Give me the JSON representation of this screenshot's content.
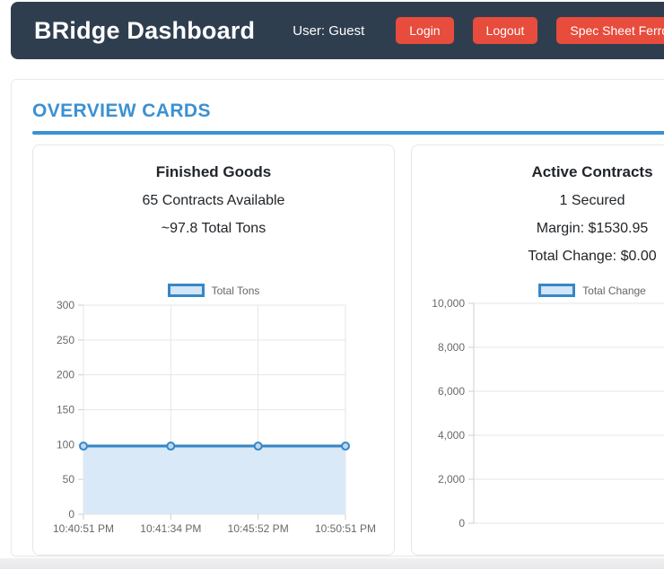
{
  "header": {
    "title": "BRidge Dashboard",
    "user_label": "User: Guest",
    "buttons": [
      "Login",
      "Logout",
      "Spec Sheet Ferrous"
    ]
  },
  "section": {
    "title": "OVERVIEW CARDS"
  },
  "cards": [
    {
      "title": "Finished Goods",
      "lines": [
        "65 Contracts Available",
        "~97.8 Total Tons"
      ]
    },
    {
      "title": "Active Contracts",
      "lines": [
        "1 Secured",
        "Margin: $1530.95",
        "Total Change: $0.00"
      ]
    }
  ],
  "chart_data": [
    {
      "type": "area",
      "title": "Finished Goods - Total Tons",
      "legend": "Total Tons",
      "categories": [
        "10:40:51 PM",
        "10:41:34 PM",
        "10:45:52 PM",
        "10:50:51 PM"
      ],
      "values": [
        97.8,
        97.8,
        97.8,
        97.8
      ],
      "ylim": [
        0,
        300
      ],
      "ytick_step": 50,
      "grid": true,
      "legend_position": "top"
    },
    {
      "type": "area",
      "title": "Active Contracts - Total Change",
      "legend": "Total Change",
      "categories": [],
      "values": [],
      "ylim": [
        0,
        10000
      ],
      "ytick_step": 2000,
      "grid": true,
      "legend_position": "top"
    }
  ],
  "colors": {
    "header_bg": "#2f3e4f",
    "button_red": "#e74c3c",
    "accent_blue": "#3b91d2",
    "line_blue": "#3687c8",
    "line_fill": "#d9e9f7",
    "marker_fill": "#bcd9f2",
    "grid": "#e6e6e6",
    "axis": "#cfcfcf",
    "axis_text": "#68696c"
  }
}
